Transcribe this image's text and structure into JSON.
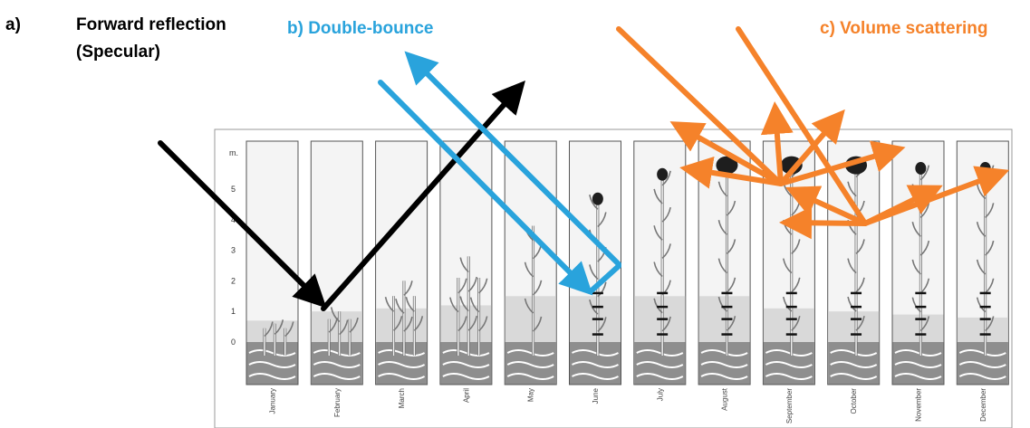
{
  "labels": {
    "a_letter": "a)",
    "a_line1": "Forward reflection",
    "a_line2": "(Specular)",
    "b": "b) Double-bounce",
    "c": "c) Volume scattering"
  },
  "colors": {
    "forward": "#000000",
    "double_bounce": "#29a3dc",
    "volume": "#f5822a",
    "soil": "#8e8e8e",
    "water": "#d9d9d9",
    "panel_sky": "#f4f4f4"
  },
  "y_axis": {
    "unit": "m.",
    "ticks": [
      "5",
      "4",
      "3",
      "2",
      "1",
      "0"
    ]
  },
  "months": [
    "January",
    "February",
    "March",
    "April",
    "May",
    "June",
    "July",
    "August",
    "September",
    "October",
    "November",
    "December"
  ],
  "water_level_m": [
    0.7,
    1.0,
    1.1,
    1.2,
    1.5,
    1.5,
    1.5,
    1.5,
    1.1,
    1.0,
    0.9,
    0.8
  ],
  "plant_height_m": [
    0.6,
    1.0,
    2.0,
    2.8,
    3.8,
    4.8,
    5.6,
    5.9,
    5.9,
    5.9,
    5.8,
    5.8
  ],
  "panicle": [
    false,
    false,
    false,
    false,
    false,
    true,
    true,
    true,
    true,
    true,
    true,
    true
  ]
}
